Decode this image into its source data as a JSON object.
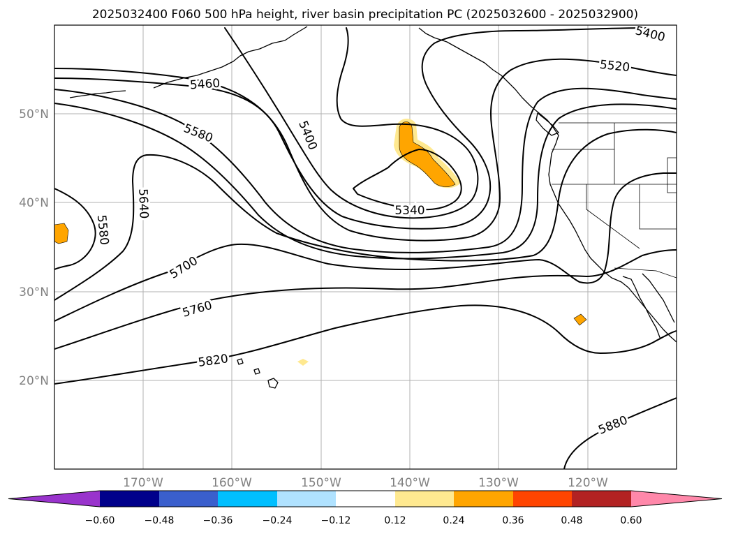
{
  "title": "2025032400 F060 500 hPa height, river basin precipitation PC (2025032600 - 2025032900)",
  "lat_labels": [
    "50°N",
    "40°N",
    "30°N",
    "20°N"
  ],
  "lon_labels": [
    "170°W",
    "160°W",
    "150°W",
    "140°W",
    "130°W",
    "120°W"
  ],
  "contour_labels": [
    "5400",
    "5460",
    "5520",
    "5580",
    "5400",
    "5640",
    "5580",
    "5340",
    "5700",
    "5760",
    "5820",
    "5880"
  ],
  "colorbar": {
    "ticks": [
      "−0.60",
      "−0.48",
      "−0.36",
      "−0.24",
      "−0.12",
      "0.12",
      "0.24",
      "0.36",
      "0.48",
      "0.60"
    ],
    "colors": [
      "#9933cc",
      "#00008b",
      "#3a5fcd",
      "#00bfff",
      "#b0e2ff",
      "#ffffff",
      "#ffe990",
      "#ffa500",
      "#ff4500",
      "#b22222",
      "#ff88aa"
    ]
  },
  "precip_colors": {
    "light": "#ffe990",
    "mid": "#ffa500"
  }
}
